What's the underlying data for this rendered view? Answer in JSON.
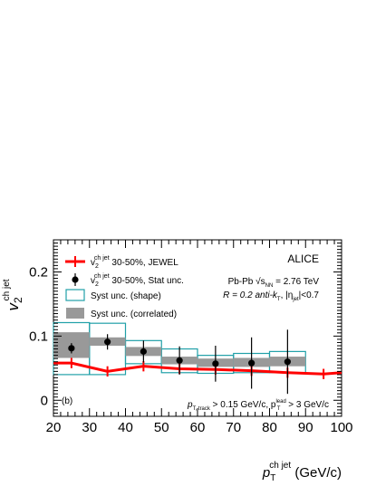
{
  "chart_data": {
    "type": "scatter",
    "experiment_label": "ALICE",
    "panel_label": "(b)",
    "system_text": "Pb-Pb √s",
    "system_sub": "NN",
    "system_value": " = 2.76 TeV",
    "jet_text_a": "R = 0.2 anti-k",
    "jet_text_sub_t": "T",
    "jet_text_b": ", |η",
    "jet_text_sub_jet": "jet",
    "jet_text_c": "|<0.7",
    "cut_text_a": "p",
    "cut_text_sub_a": "T, track",
    "cut_text_b": " > 0.15 GeV/c, p",
    "cut_text_sup_lead": "lead",
    "cut_text_sub_T": "T",
    "cut_text_c": " > 3 GeV/c",
    "ylabel_main": "v",
    "ylabel_sub": "2",
    "ylabel_sup": "ch jet",
    "xlabel_main": "p",
    "xlabel_sub": "T",
    "xlabel_sup": "ch jet",
    "xlabel_unit": " (GeV/c)",
    "xlim": [
      20,
      100
    ],
    "ylim": [
      -0.025,
      0.25
    ],
    "x_ticks": [
      20,
      30,
      40,
      50,
      60,
      70,
      80,
      90,
      100
    ],
    "y_ticks": [
      0,
      0.1,
      0.2
    ],
    "y_tick_labels": [
      "0",
      "0.1",
      "0.2"
    ],
    "grid": false,
    "legend_position": "top-left",
    "legend": {
      "jewel": {
        "pre": "v",
        "sub": "2",
        "sup": "ch jet",
        "post": " 30-50%, JEWEL"
      },
      "data": {
        "pre": "v",
        "sub": "2",
        "sup": "ch jet",
        "post": " 30-50%, Stat unc."
      },
      "shape": "Syst unc. (shape)",
      "correlated": "Syst unc. (correlated)"
    },
    "colors": {
      "jewel": "#ff0000",
      "shape_box": "#20a0a8",
      "correlated_box": "#999999",
      "data": "#000000"
    },
    "data_points": [
      {
        "x": 25,
        "y": 0.081,
        "stat": 0.008,
        "shape_lo": 0.04,
        "shape_hi": 0.121,
        "corr_lo": 0.066,
        "corr_hi": 0.106
      },
      {
        "x": 35,
        "y": 0.091,
        "stat": 0.012,
        "shape_lo": 0.04,
        "shape_hi": 0.12,
        "corr_lo": 0.085,
        "corr_hi": 0.098
      },
      {
        "x": 45,
        "y": 0.076,
        "stat": 0.017,
        "shape_lo": 0.057,
        "shape_hi": 0.093,
        "corr_lo": 0.069,
        "corr_hi": 0.083
      },
      {
        "x": 55,
        "y": 0.062,
        "stat": 0.022,
        "shape_lo": 0.043,
        "shape_hi": 0.08,
        "corr_lo": 0.056,
        "corr_hi": 0.068
      },
      {
        "x": 65,
        "y": 0.057,
        "stat": 0.028,
        "shape_lo": 0.042,
        "shape_hi": 0.07,
        "corr_lo": 0.052,
        "corr_hi": 0.065
      },
      {
        "x": 75,
        "y": 0.058,
        "stat": 0.04,
        "shape_lo": 0.043,
        "shape_hi": 0.073,
        "corr_lo": 0.052,
        "corr_hi": 0.066
      },
      {
        "x": 85,
        "y": 0.06,
        "stat": 0.05,
        "shape_lo": 0.043,
        "shape_hi": 0.076,
        "corr_lo": 0.053,
        "corr_hi": 0.068
      }
    ],
    "jewel_points": [
      {
        "x": 25,
        "y": 0.058,
        "err": 0.008
      },
      {
        "x": 35,
        "y": 0.045,
        "err": 0.008
      },
      {
        "x": 45,
        "y": 0.053,
        "err": 0.008
      },
      {
        "x": 55,
        "y": 0.049,
        "err": 0.008
      },
      {
        "x": 65,
        "y": 0.048,
        "err": 0.008
      },
      {
        "x": 75,
        "y": 0.046,
        "err": 0.008
      },
      {
        "x": 85,
        "y": 0.043,
        "err": 0.008
      },
      {
        "x": 95,
        "y": 0.041,
        "err": 0.008
      }
    ]
  }
}
